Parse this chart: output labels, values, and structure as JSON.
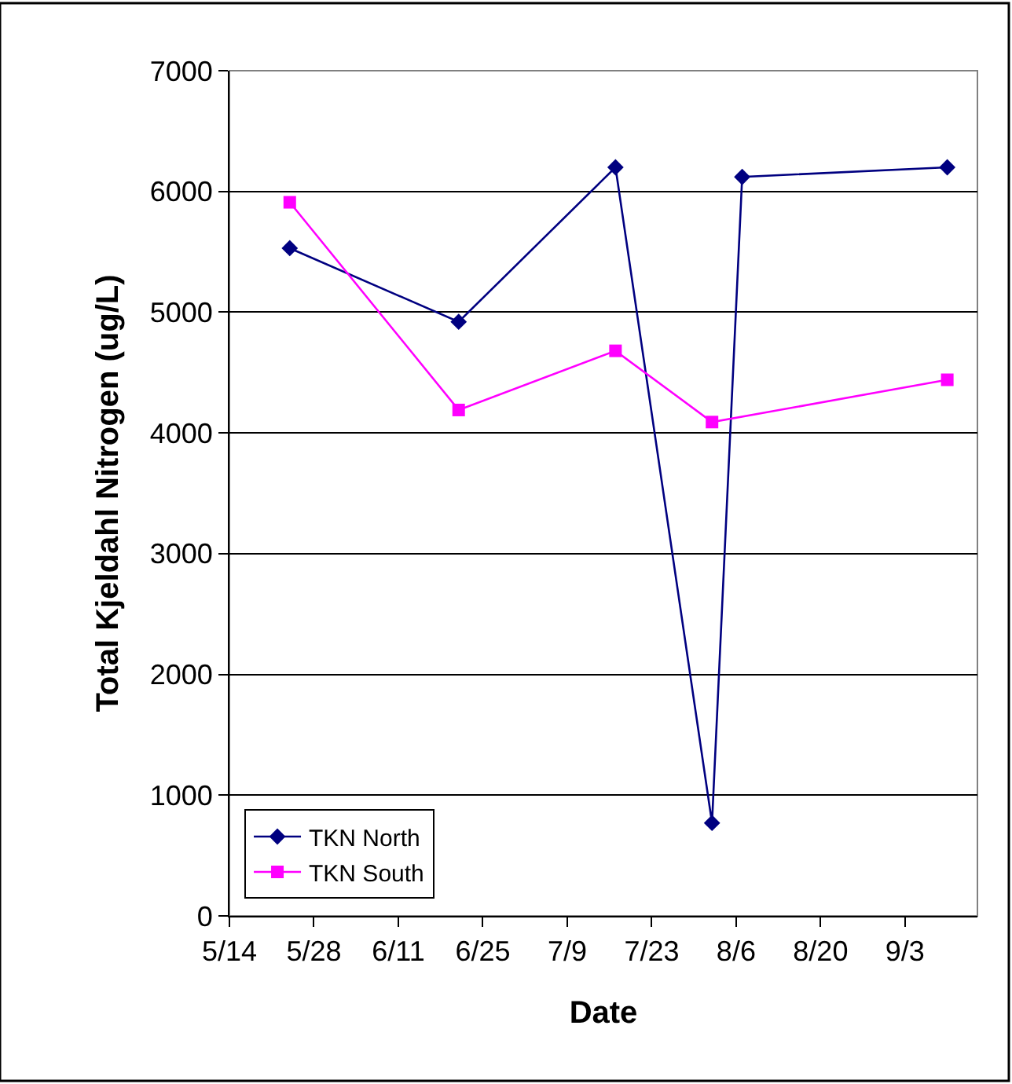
{
  "chart_data": {
    "type": "line",
    "xlabel": "Date",
    "ylabel": "Total Kjeldahl Nitrogen (ug/L)",
    "xlim": [
      "--05-14",
      "--09-15"
    ],
    "xticks": [
      {
        "value": "--05-14",
        "label": "5/14"
      },
      {
        "value": "--05-28",
        "label": "5/28"
      },
      {
        "value": "--06-11",
        "label": "6/11"
      },
      {
        "value": "--06-25",
        "label": "6/25"
      },
      {
        "value": "--07-09",
        "label": "7/9"
      },
      {
        "value": "--07-23",
        "label": "7/23"
      },
      {
        "value": "--08-06",
        "label": "8/6"
      },
      {
        "value": "--08-20",
        "label": "8/20"
      },
      {
        "value": "--09-03",
        "label": "9/3"
      }
    ],
    "ylim": [
      0,
      7000
    ],
    "yticks": [
      0,
      1000,
      2000,
      3000,
      4000,
      5000,
      6000,
      7000
    ],
    "grid": "y",
    "legend": "bottom left",
    "line_style": "solid",
    "series": [
      {
        "name": "TKN North",
        "color": "#000080",
        "marker": "diamond",
        "x": [
          "--05-24",
          "--06-21",
          "--07-17",
          "--08-02",
          "--08-07",
          "--09-10"
        ],
        "values": [
          5530,
          4920,
          6200,
          770,
          6120,
          6200
        ]
      },
      {
        "name": "TKN South",
        "color": "#ff00ff",
        "marker": "square",
        "x": [
          "--05-24",
          "--06-21",
          "--07-17",
          "--08-02",
          "--09-10"
        ],
        "values": [
          5910,
          4190,
          4680,
          4090,
          4440
        ]
      }
    ]
  }
}
